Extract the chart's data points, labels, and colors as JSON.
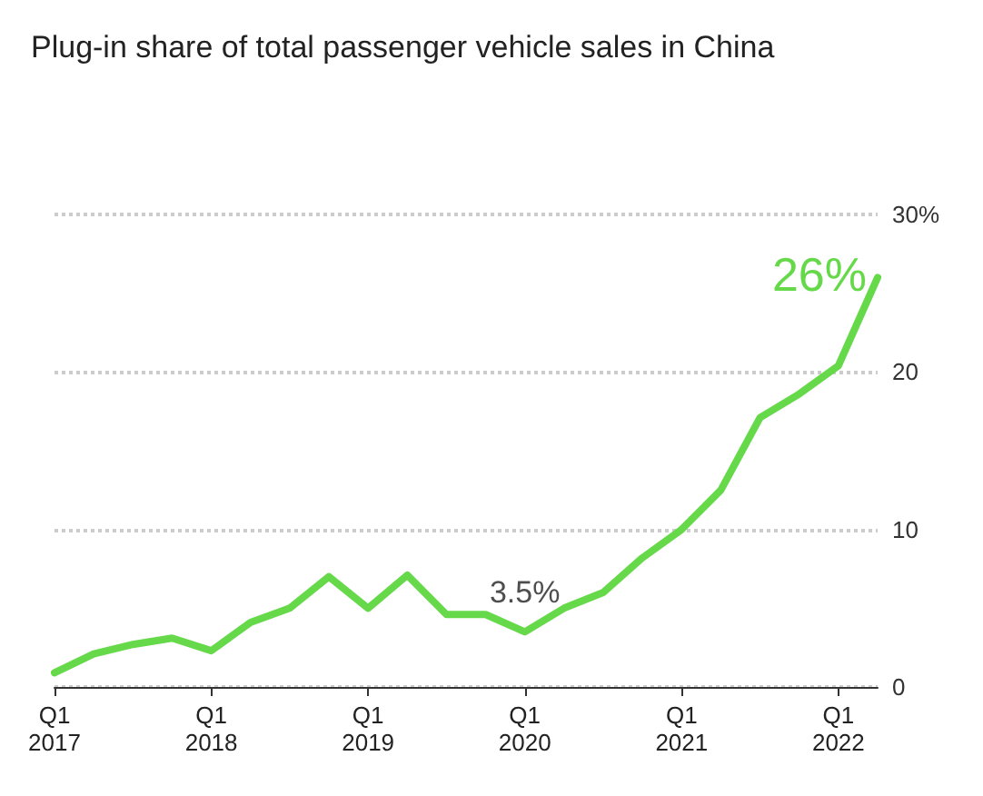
{
  "chart_data": {
    "type": "line",
    "title": "Plug-in share of total passenger vehicle sales in China",
    "categories": [
      "Q1\n2017",
      null,
      null,
      null,
      "Q1\n2018",
      null,
      null,
      null,
      "Q1\n2019",
      null,
      null,
      null,
      "Q1\n2020",
      null,
      null,
      null,
      "Q1\n2021",
      null,
      null,
      null,
      "Q1\n2022",
      null
    ],
    "series": [
      {
        "color": "#66d94a",
        "values": [
          0.9,
          2.1,
          2.7,
          3.1,
          2.3,
          4.1,
          5.0,
          7.0,
          5.0,
          7.1,
          4.6,
          4.6,
          3.5,
          5.0,
          6.0,
          8.2,
          10.0,
          12.5,
          17.1,
          18.6,
          20.4,
          26
        ]
      }
    ],
    "ylim": [
      0,
      30
    ],
    "yticks": [
      0,
      10,
      20,
      {
        "value": 30,
        "label": "30%"
      }
    ],
    "grid": "y",
    "marker": "none",
    "line_style": "solid",
    "annotations": [
      {
        "text": "3.5%",
        "x": "Q1\n2020",
        "y": 3.5
      },
      "26%"
    ]
  }
}
